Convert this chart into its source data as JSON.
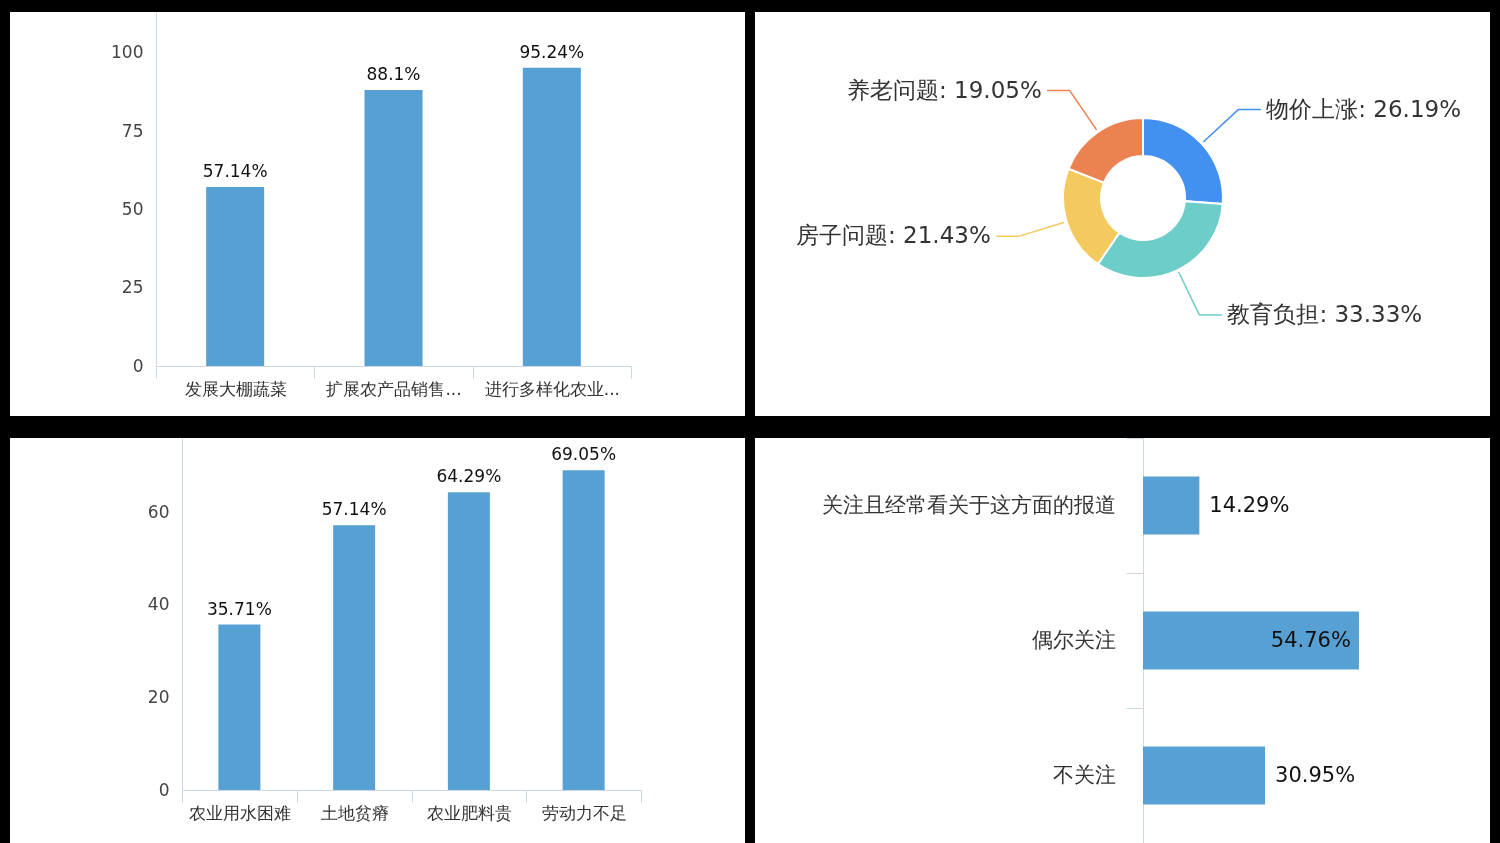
{
  "chart_data": [
    {
      "type": "bar",
      "categories": [
        "发展大棚蔬菜",
        "扩展农产品销售...",
        "进行多样化农业..."
      ],
      "values": [
        57.14,
        88.1,
        95.24
      ],
      "value_labels": [
        "57.14%",
        "88.1%",
        "95.24%"
      ],
      "color": "#56a0d3",
      "ylim": [
        0,
        113
      ],
      "yticks": [
        0,
        25,
        50,
        75,
        100
      ]
    },
    {
      "type": "donut",
      "categories": [
        "物价上涨",
        "教育负担",
        "房子问题",
        "养老问题"
      ],
      "values": [
        26.19,
        33.33,
        21.43,
        19.05
      ],
      "value_labels": [
        "26.19%",
        "33.33%",
        "21.43%",
        "19.05%"
      ],
      "colors": [
        "#4291f0",
        "#6dcdc9",
        "#f4c95d",
        "#ec8251"
      ]
    },
    {
      "type": "bar",
      "categories": [
        "农业用水困难",
        "土地贫瘠",
        "农业肥料贵",
        "劳动力不足"
      ],
      "values": [
        35.71,
        57.14,
        64.29,
        69.05
      ],
      "value_labels": [
        "35.71%",
        "57.14%",
        "64.29%",
        "69.05%"
      ],
      "color": "#56a0d3",
      "ylim": [
        0,
        76
      ],
      "yticks": [
        0,
        20,
        40,
        60
      ]
    },
    {
      "type": "bar",
      "orientation": "horizontal",
      "categories": [
        "关注且经常看关于这方面的报道",
        "偶尔关注",
        "不关注"
      ],
      "values": [
        14.29,
        54.76,
        30.95
      ],
      "value_labels": [
        "14.29%",
        "54.76%",
        "30.95%"
      ],
      "color": "#56a0d3",
      "xlim": [
        0,
        88
      ],
      "tick_labels": "y"
    }
  ]
}
